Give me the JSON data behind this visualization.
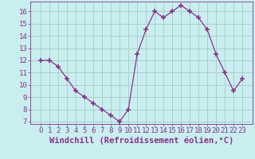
{
  "x": [
    0,
    1,
    2,
    3,
    4,
    5,
    6,
    7,
    8,
    9,
    10,
    11,
    12,
    13,
    14,
    15,
    16,
    17,
    18,
    19,
    20,
    21,
    22,
    23
  ],
  "y": [
    12.0,
    12.0,
    11.5,
    10.5,
    9.5,
    9.0,
    8.5,
    8.0,
    7.5,
    7.0,
    8.0,
    12.5,
    14.5,
    16.0,
    15.5,
    16.0,
    16.5,
    16.0,
    15.5,
    14.5,
    12.5,
    11.0,
    9.5,
    10.5
  ],
  "line_color": "#883388",
  "marker": "+",
  "marker_size": 4,
  "marker_lw": 1.2,
  "background_color": "#c8eef0",
  "grid_color": "#b0cccc",
  "xlabel": "Windchill (Refroidissement éolien,°C)",
  "xlabel_color": "#883388",
  "xlabel_fontsize": 7.5,
  "tick_fontsize": 6.5,
  "tick_color": "#883388",
  "ylim": [
    6.8,
    16.8
  ],
  "yticks": [
    7,
    8,
    9,
    10,
    11,
    12,
    13,
    14,
    15,
    16
  ],
  "xticks": [
    0,
    1,
    2,
    3,
    4,
    5,
    6,
    7,
    8,
    9,
    10,
    11,
    12,
    13,
    14,
    15,
    16,
    17,
    18,
    19,
    20,
    21,
    22,
    23
  ],
  "spine_color": "#883388",
  "linewidth": 0.9
}
